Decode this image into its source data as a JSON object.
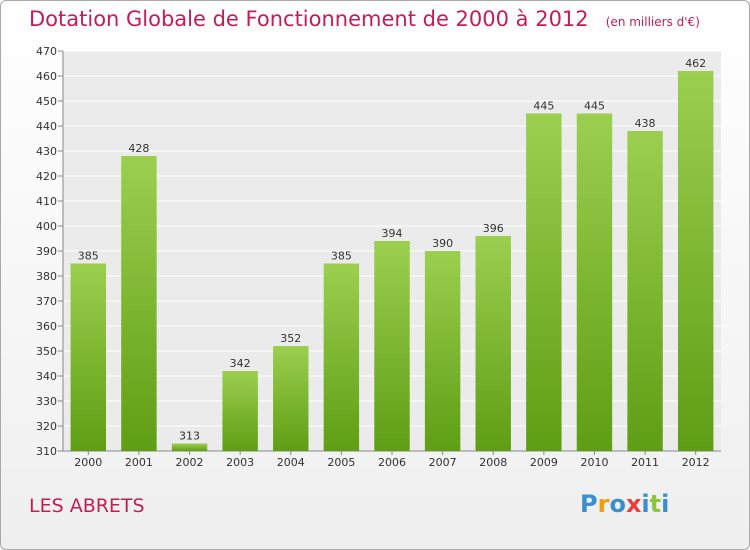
{
  "header": {
    "title": "Dotation Globale de Fonctionnement de 2000 à 2012",
    "unit": "(en milliers d'€)"
  },
  "footer": {
    "commune": "LES ABRETS",
    "logo_letters": [
      {
        "ch": "P",
        "color": "#3a8fd0"
      },
      {
        "ch": "r",
        "color": "#f39c12"
      },
      {
        "ch": "o",
        "color": "#3a8fd0"
      },
      {
        "ch": "x",
        "color": "#e83e3e"
      },
      {
        "ch": "i",
        "color": "#3a8fd0"
      },
      {
        "ch": "t",
        "color": "#8cc63f"
      },
      {
        "ch": "i",
        "color": "#3a8fd0"
      }
    ]
  },
  "chart_data": {
    "type": "bar",
    "categories": [
      "2000",
      "2001",
      "2002",
      "2003",
      "2004",
      "2005",
      "2006",
      "2007",
      "2008",
      "2009",
      "2010",
      "2011",
      "2012"
    ],
    "values": [
      385,
      428,
      313,
      342,
      352,
      385,
      394,
      390,
      396,
      445,
      445,
      438,
      462
    ],
    "ylim": [
      310,
      470
    ],
    "yticks": [
      310,
      320,
      330,
      340,
      350,
      360,
      370,
      380,
      390,
      400,
      410,
      420,
      430,
      440,
      450,
      460,
      470
    ],
    "grid": true,
    "bar_color_top": "#9ccf4f",
    "bar_color_bottom": "#5e9e14"
  }
}
